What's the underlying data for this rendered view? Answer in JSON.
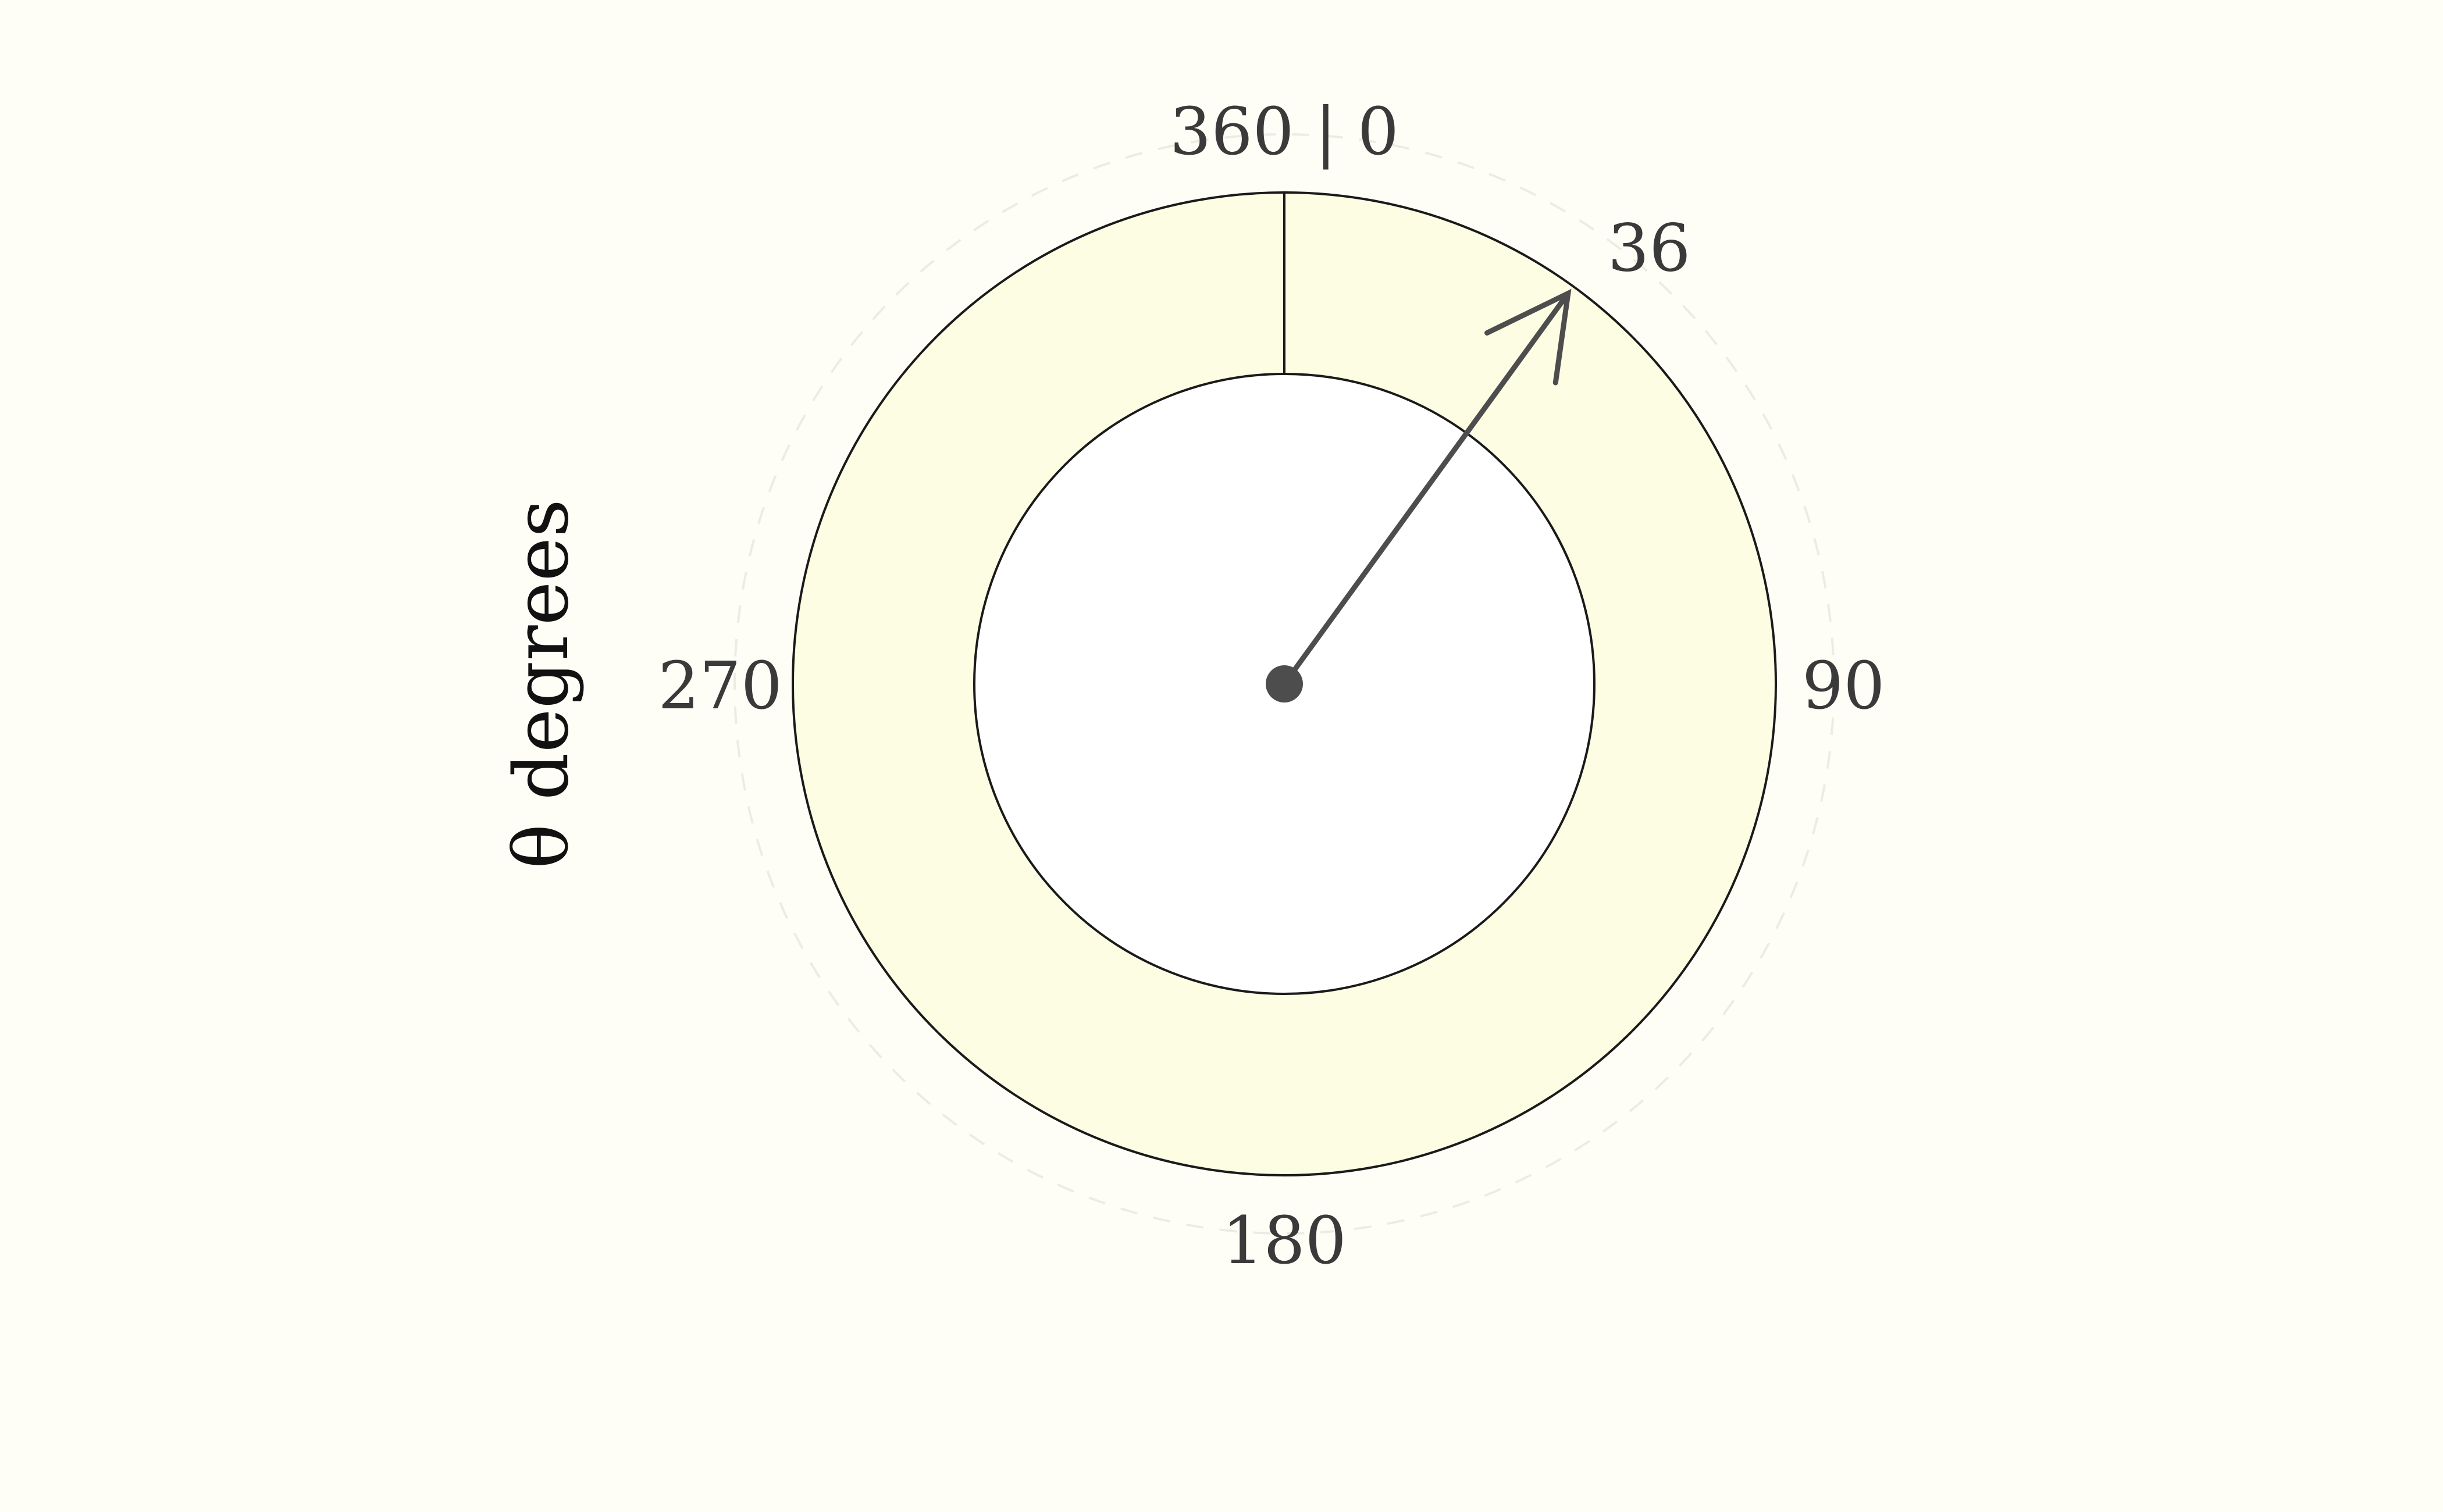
{
  "axis_title": "θ degrees",
  "tick_labels": {
    "top": "360 | 0",
    "right": "90",
    "bottom": "180",
    "left": "270"
  },
  "value_label": "36",
  "dial": {
    "value_degrees": 36,
    "range": [
      0,
      360
    ],
    "direction": "clockwise",
    "zero_position": "top"
  },
  "colors": {
    "background": "#FEFEF6",
    "ring_fill": "#FDFDE3",
    "ring_stroke": "#1A1A1A",
    "inner_fill": "#FFFFFF",
    "needle": "#4D4D4D",
    "grid": "#ECECE2"
  },
  "chart_data": {
    "type": "gauge",
    "title": "",
    "ylabel": "θ degrees",
    "value": 36,
    "range": [
      0,
      360
    ],
    "ticks": [
      "360 | 0",
      "90",
      "180",
      "270"
    ],
    "grid": true
  }
}
